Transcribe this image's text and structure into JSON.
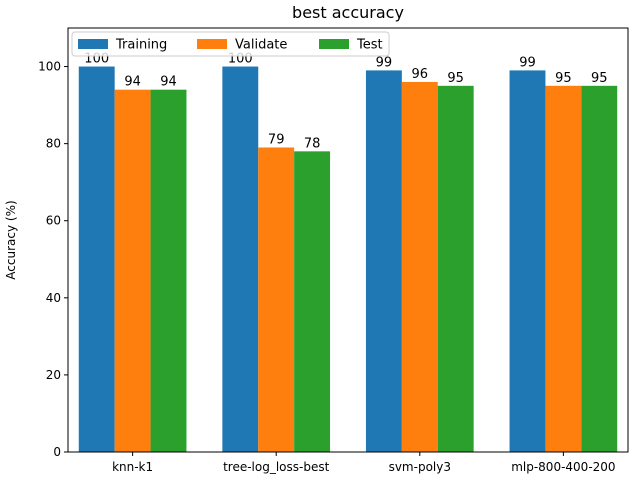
{
  "chart_data": {
    "type": "bar",
    "title": "best accuracy",
    "xlabel": "",
    "ylabel": "Accuracy (%)",
    "ylim": [
      0,
      110
    ],
    "yticks": [
      0,
      20,
      40,
      60,
      80,
      100
    ],
    "ytick_labels": [
      "0",
      "20",
      "40",
      "60",
      "80",
      "100"
    ],
    "grid": false,
    "legend_position": "top-left",
    "legend_columns": 3,
    "categories": [
      "knn-k1",
      "tree-log_loss-best",
      "svm-poly3",
      "mlp-800-400-200"
    ],
    "series": [
      {
        "name": "Training",
        "color": "#1f77b4",
        "values": [
          100,
          100,
          99,
          99
        ],
        "labels": [
          "100",
          "100",
          "99",
          "99"
        ]
      },
      {
        "name": "Validate",
        "color": "#ff7f0e",
        "values": [
          94,
          79,
          96,
          95
        ],
        "labels": [
          "94",
          "79",
          "96",
          "95"
        ]
      },
      {
        "name": "Test",
        "color": "#2ca02c",
        "values": [
          94,
          78,
          95,
          95
        ],
        "labels": [
          "94",
          "78",
          "95",
          "95"
        ]
      }
    ]
  }
}
